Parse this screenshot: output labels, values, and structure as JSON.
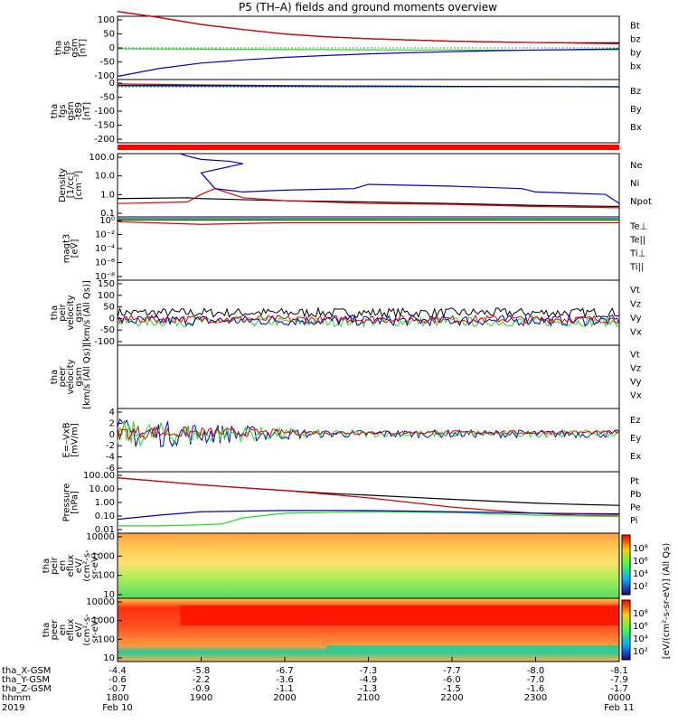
{
  "title": "P5 (TH–A) fields and ground moments overview",
  "colors": {
    "black": "#000000",
    "red": "#e00000",
    "green": "#22dd22",
    "blue": "#0000cc"
  },
  "chart_data": [
    {
      "type": "line",
      "panel": "fgs_gsm",
      "ylabel": [
        "tha",
        "fgs",
        "gsm",
        "[nT]"
      ],
      "ylim": [
        -100,
        100
      ],
      "yticks": [
        "100",
        "50",
        "0",
        "-50",
        "-100"
      ],
      "legend": [
        {
          "label": "Bt",
          "color": "black"
        },
        {
          "label": "bz",
          "color": "red"
        },
        {
          "label": "by",
          "color": "green"
        },
        {
          "label": "bx",
          "color": "blue"
        }
      ],
      "series": [
        {
          "color": "black",
          "x": [
            1800,
            1830,
            1900,
            1930,
            2000,
            2030,
            2100,
            2130,
            2200,
            2230,
            2300,
            2330,
            2400
          ],
          "y": [
            115,
            96,
            74,
            58,
            44,
            35,
            29,
            25,
            21,
            19,
            17,
            16,
            16
          ]
        },
        {
          "color": "red",
          "x": [
            1800,
            1830,
            1900,
            1930,
            2000,
            2030,
            2100,
            2130,
            2200,
            2230,
            2300,
            2330,
            2400
          ],
          "y": [
            115,
            96,
            74,
            58,
            44,
            35,
            29,
            25,
            21,
            19,
            17,
            15,
            13
          ]
        },
        {
          "color": "green",
          "x": [
            1800,
            1900,
            2000,
            2100,
            2200,
            2300,
            2400
          ],
          "y": [
            -3,
            -4,
            -5,
            -6,
            -7,
            -7,
            -6
          ]
        },
        {
          "color": "blue",
          "x": [
            1800,
            1830,
            1900,
            1930,
            2000,
            2030,
            2100,
            2130,
            2200,
            2230,
            2300,
            2330,
            2400
          ],
          "y": [
            -90,
            -65,
            -48,
            -38,
            -30,
            -24,
            -19,
            -15,
            -12,
            -9,
            -7,
            -5,
            -3
          ]
        }
      ]
    },
    {
      "type": "line",
      "panel": "fgs_gsm_minus_t89",
      "ylabel": [
        "tha",
        "fgs",
        "gsm",
        "-t89",
        "[nT]"
      ],
      "ylim": [
        -230,
        30
      ],
      "yticks": [
        "0",
        "-50",
        "-100",
        "-150",
        "-200"
      ],
      "legend": [
        {
          "label": "Bz",
          "color": "red"
        },
        {
          "label": "By",
          "color": "green"
        },
        {
          "label": "Bx",
          "color": "blue"
        }
      ],
      "series": [
        {
          "color": "red",
          "x": [
            1800,
            1900,
            2000,
            2100,
            2200,
            2300,
            2400
          ],
          "y": [
            12,
            8,
            5,
            3,
            2,
            1,
            0
          ]
        },
        {
          "color": "green",
          "x": [
            1800,
            1900,
            2000,
            2100,
            2200,
            2300,
            2400
          ],
          "y": [
            3,
            2,
            1,
            0,
            0,
            1,
            2
          ]
        },
        {
          "color": "blue",
          "x": [
            1800,
            1900,
            2000,
            2100,
            2200,
            2300,
            2400
          ],
          "y": [
            6,
            5,
            4,
            3,
            2,
            1,
            0
          ]
        }
      ]
    },
    {
      "type": "line",
      "panel": "density",
      "log": true,
      "ylabel": [
        "Density",
        "[1/cc]",
        "[cm⁻³]"
      ],
      "ylim": [
        0.1,
        200
      ],
      "yticks": [
        "100.0",
        "10.0",
        "1.0",
        "0.1"
      ],
      "legend": [
        {
          "label": "Ne",
          "color": "red"
        },
        {
          "label": "Ni",
          "color": "black"
        },
        {
          "label": "Npot",
          "color": "blue"
        }
      ],
      "series": [
        {
          "color": "black",
          "x": [
            1800,
            1850,
            1900,
            2000,
            2100,
            2200,
            2300,
            2400
          ],
          "y": [
            0.9,
            1.0,
            0.9,
            0.7,
            0.6,
            0.5,
            0.4,
            0.35
          ]
        },
        {
          "color": "red",
          "x": [
            1800,
            1850,
            1900,
            1910,
            1930,
            2000,
            2100,
            2200,
            2300,
            2400
          ],
          "y": [
            0.5,
            0.6,
            1.5,
            3,
            1.0,
            0.7,
            0.5,
            0.45,
            0.35,
            0.3
          ]
        },
        {
          "color": "blue",
          "x": [
            1845,
            1850,
            1860,
            1880,
            1890,
            1900,
            1910,
            1930,
            2000,
            2050,
            2100,
            2200,
            2250,
            2300,
            2350,
            2400
          ],
          "y": [
            200,
            150,
            100,
            80,
            60,
            20,
            3,
            2,
            2.5,
            3,
            5,
            4,
            3,
            2,
            1.5,
            0.5
          ]
        }
      ]
    },
    {
      "type": "line",
      "panel": "temperature",
      "log": true,
      "ylabel": [
        "magt3",
        "[eV]"
      ],
      "ylim": [
        1e-09,
        100
      ],
      "yticks": [
        "10⁰",
        "10⁻²",
        "10⁻⁴",
        "10⁻⁶",
        "10⁻⁸"
      ],
      "legend": [
        {
          "label": "Te⊥",
          "color": "red"
        },
        {
          "label": "Te||",
          "color": "black"
        },
        {
          "label": "Ti⊥",
          "color": "blue"
        },
        {
          "label": "Ti||",
          "color": "green"
        }
      ],
      "series": [
        {
          "color": "black",
          "x": [
            1800,
            2400
          ],
          "y": [
            30,
            30
          ]
        },
        {
          "color": "red",
          "x": [
            1800,
            1900,
            2000,
            2400
          ],
          "y": [
            15,
            5,
            10,
            10
          ]
        },
        {
          "color": "blue",
          "x": [
            1800,
            2400
          ],
          "y": [
            50,
            50
          ]
        },
        {
          "color": "green",
          "x": [
            1800,
            2400
          ],
          "y": [
            40,
            40
          ]
        }
      ]
    },
    {
      "type": "line",
      "panel": "peir_velocity",
      "ylabel": [
        "tha",
        "peir",
        "velocity",
        "gsm",
        "[km/s (All Qs)]"
      ],
      "ylim": [
        -100,
        150
      ],
      "yticks": [
        "150",
        "100",
        "50",
        "0",
        "-50",
        "-100"
      ],
      "legend": [
        {
          "label": "Vt",
          "color": "black"
        },
        {
          "label": "Vz",
          "color": "red"
        },
        {
          "label": "Vy",
          "color": "green"
        },
        {
          "label": "Vx",
          "color": "blue"
        }
      ],
      "series": [
        {
          "color": "black",
          "mean": 25,
          "noise": 18
        },
        {
          "color": "green",
          "mean": -10,
          "noise": 18
        },
        {
          "color": "blue",
          "mean": -5,
          "noise": 20
        },
        {
          "color": "red",
          "mean": 0,
          "noise": 15
        }
      ]
    },
    {
      "type": "line",
      "panel": "peer_velocity",
      "ylabel": [
        "tha",
        "peer",
        "velocity",
        "gsm",
        "[km/s (All Qs)]"
      ],
      "legend": [
        {
          "label": "Vt",
          "color": "black"
        },
        {
          "label": "Vz",
          "color": "red"
        },
        {
          "label": "Vy",
          "color": "green"
        },
        {
          "label": "Vx",
          "color": "blue"
        }
      ],
      "series": []
    },
    {
      "type": "line",
      "panel": "e_field",
      "ylabel": [
        "E=–VxB",
        "[mV/m]"
      ],
      "ylim": [
        -6,
        4
      ],
      "yticks": [
        "4",
        "2",
        "0",
        "-2",
        "-4",
        "-6"
      ],
      "legend": [
        {
          "label": "Ez",
          "color": "red"
        },
        {
          "label": "Ey",
          "color": "green"
        },
        {
          "label": "Ex",
          "color": "blue"
        }
      ],
      "series": [
        {
          "color": "blue",
          "mean": 0,
          "noise": 2.5
        },
        {
          "color": "green",
          "mean": 0,
          "noise": 2.2
        },
        {
          "color": "red",
          "mean": 0.2,
          "noise": 1.2
        }
      ]
    },
    {
      "type": "line",
      "panel": "pressure",
      "log": true,
      "ylabel": [
        "Pressure",
        "[nPa]"
      ],
      "ylim": [
        0.01,
        100
      ],
      "yticks": [
        "100.00",
        "10.00",
        "1.00",
        "0.10",
        "0.01"
      ],
      "legend": [
        {
          "label": "Pt",
          "color": "black"
        },
        {
          "label": "Pb",
          "color": "red"
        },
        {
          "label": "Pe",
          "color": "green"
        },
        {
          "label": "Pi",
          "color": "blue"
        }
      ],
      "series": [
        {
          "color": "black",
          "x": [
            1800,
            1830,
            1900,
            1930,
            2000,
            2030,
            2100,
            2130,
            2200,
            2230,
            2300,
            2330,
            2400
          ],
          "y": [
            40,
            24,
            14,
            9,
            6,
            4,
            3,
            2.2,
            1.6,
            1.2,
            0.9,
            0.75,
            0.65
          ]
        },
        {
          "color": "red",
          "x": [
            1800,
            1830,
            1900,
            1930,
            2000,
            2030,
            2100,
            2130,
            2200,
            2230,
            2300,
            2330,
            2400
          ],
          "y": [
            40,
            24,
            14,
            9,
            6,
            3.5,
            2,
            1,
            0.5,
            0.3,
            0.2,
            0.15,
            0.15
          ]
        },
        {
          "color": "green",
          "x": [
            1800,
            1830,
            1900,
            1915,
            1930,
            2000,
            2100,
            2200,
            2300,
            2400
          ],
          "y": [
            0.03,
            0.03,
            0.035,
            0.04,
            0.1,
            0.2,
            0.25,
            0.22,
            0.15,
            0.12
          ]
        },
        {
          "color": "blue",
          "x": [
            1800,
            1830,
            1900,
            2000,
            2100,
            2200,
            2300,
            2400
          ],
          "y": [
            0.08,
            0.15,
            0.25,
            0.3,
            0.3,
            0.25,
            0.2,
            0.18
          ]
        }
      ]
    },
    {
      "type": "heatmap",
      "panel": "peir_en_eflux",
      "log": true,
      "ylabel": [
        "tha",
        "peir",
        "en",
        "eflux",
        "eV/",
        "(cm²-s-",
        "sr-eV)"
      ],
      "yticks": [
        "10000",
        "1000",
        "100",
        "10"
      ]
    },
    {
      "type": "heatmap",
      "panel": "peer_en_eflux",
      "log": true,
      "ylabel": [
        "tha",
        "peer",
        "en",
        "eflux",
        "eV/",
        "(cm²-s-",
        "sr-eV)"
      ],
      "yticks": [
        "10000",
        "1000",
        "100",
        "10"
      ]
    }
  ],
  "colorbar": {
    "label": "[eV/(cm²-s-sr-eV)] (All Qs)",
    "ticks_top": [
      "10⁸",
      "10⁶",
      "10⁴",
      "10²"
    ],
    "ticks_bottom": [
      "10⁸",
      "10⁶",
      "10⁴",
      "10²"
    ]
  },
  "xaxis": {
    "rows": [
      {
        "label": "tha_X-GSM",
        "values": [
          "-4.4",
          "-5.8",
          "-6.7",
          "-7.3",
          "-7.7",
          "-8.0",
          "-8.1"
        ]
      },
      {
        "label": "tha_Y-GSM",
        "values": [
          "-0.6",
          "-2.2",
          "-3.6",
          "-4.9",
          "-6.0",
          "-7.0",
          "-7.9"
        ]
      },
      {
        "label": "tha_Z-GSM",
        "values": [
          "-0.7",
          "-0.9",
          "-1.1",
          "-1.3",
          "-1.5",
          "-1.6",
          "-1.7"
        ]
      },
      {
        "label": "hhmm",
        "values": [
          "1800",
          "1900",
          "2000",
          "2100",
          "2200",
          "2300",
          "0000"
        ]
      }
    ],
    "year": "2019",
    "date_start": "Feb 10",
    "date_end": "Feb 11"
  }
}
